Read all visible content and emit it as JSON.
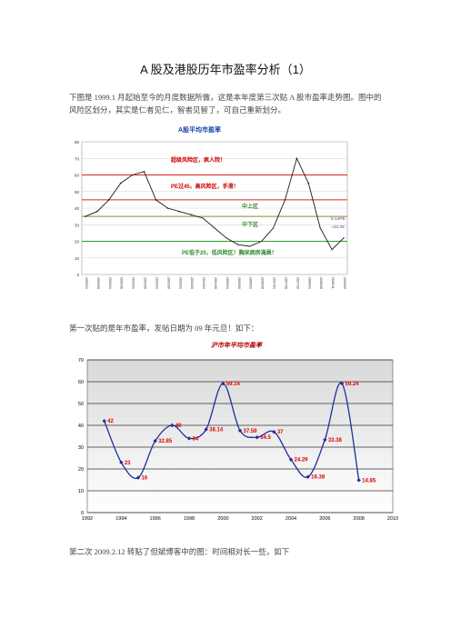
{
  "title": "A 股及港股历年市盈率分析（1）",
  "intro": "下图是 1999.1 月起始至今的月度数据所做，这是本年度第三次贴 A 股市盈率走势图。图中的风险区划分，其实是仁者见仁，智者见智了，可自己重新划分。",
  "para2": "第一次贴的是年市盈率，发帖日期为 09 年元旦！如下：",
  "para3": "第二次 2009.2.12 转贴了但斌博客中的图：时间相对长一些，如下",
  "chart1": {
    "title": "A股平均市盈率",
    "zones": [
      {
        "label": "超级风险区，疯人院！",
        "color": "#cc0000"
      },
      {
        "label": "PE过45，高风险区，手滑！",
        "color": "#cc0000"
      },
      {
        "label": "中上区",
        "color": "#2f8a2f"
      },
      {
        "label": "中下区",
        "color": "#2f8a2f"
      },
      {
        "label": "PE低于20，低风险区！胸呆病房滿員！",
        "color": "#2f8a2f"
      }
    ],
    "end_note": [
      "5.14PE",
      "=22.05"
    ],
    "colors": {
      "above": "#1a1a1a",
      "below": "#7a2a9a",
      "red_line": "#dd2222",
      "olive_line": "#8a8a2a",
      "green_line": "#2aa02a"
    }
  },
  "chart_data": [
    {
      "type": "line",
      "title": "A股平均市盈率",
      "xlabel": "",
      "ylabel": "",
      "ylim": [
        0,
        80
      ],
      "yticks": [
        0,
        10,
        20,
        30,
        40,
        50,
        60,
        70,
        80
      ],
      "grid": true,
      "reference_lines": [
        60,
        45,
        35,
        20
      ],
      "x": [
        "1999/01",
        "1999/06",
        "2000/01",
        "2000/06",
        "2001/01",
        "2001/06",
        "2002/01",
        "2002/06",
        "2003/01",
        "2003/06",
        "2004/01",
        "2004/06",
        "2005/01",
        "2005/06",
        "2006/01",
        "2006/06",
        "2007/01",
        "2007/06",
        "2007/10",
        "2008/01",
        "2008/06",
        "2008/11",
        "2009/05"
      ],
      "series": [
        {
          "values": [
            35,
            38,
            45,
            55,
            60,
            62,
            45,
            40,
            38,
            36,
            34,
            28,
            22,
            18,
            17,
            20,
            28,
            45,
            70,
            55,
            28,
            15,
            22
          ]
        }
      ]
    },
    {
      "type": "line",
      "title": "沪市年平均市盈率",
      "ylim": [
        0,
        70
      ],
      "yticks": [
        0,
        10,
        20,
        30,
        40,
        50,
        60,
        70
      ],
      "xticks": [
        1992,
        1994,
        1996,
        1998,
        2000,
        2002,
        2004,
        2006,
        2008,
        2010
      ],
      "x": [
        1993,
        1994,
        1995,
        1996,
        1997,
        1998,
        1999,
        2000,
        2001,
        2002,
        2003,
        2004,
        2005,
        2006,
        2007,
        2008
      ],
      "series": [
        {
          "values": [
            42,
            23,
            16,
            32.85,
            40,
            34,
            38.14,
            59.14,
            37.59,
            34.5,
            37,
            24.29,
            16.38,
            33.38,
            59.24,
            14.85
          ]
        }
      ],
      "point_labels": [
        "42",
        "23",
        "16",
        "32.85",
        "40",
        "34",
        "38.14",
        "59.14",
        "37.59",
        "34.5",
        "37",
        "24.29",
        "16.38",
        "33.38",
        "59.24",
        "14.85"
      ]
    }
  ]
}
